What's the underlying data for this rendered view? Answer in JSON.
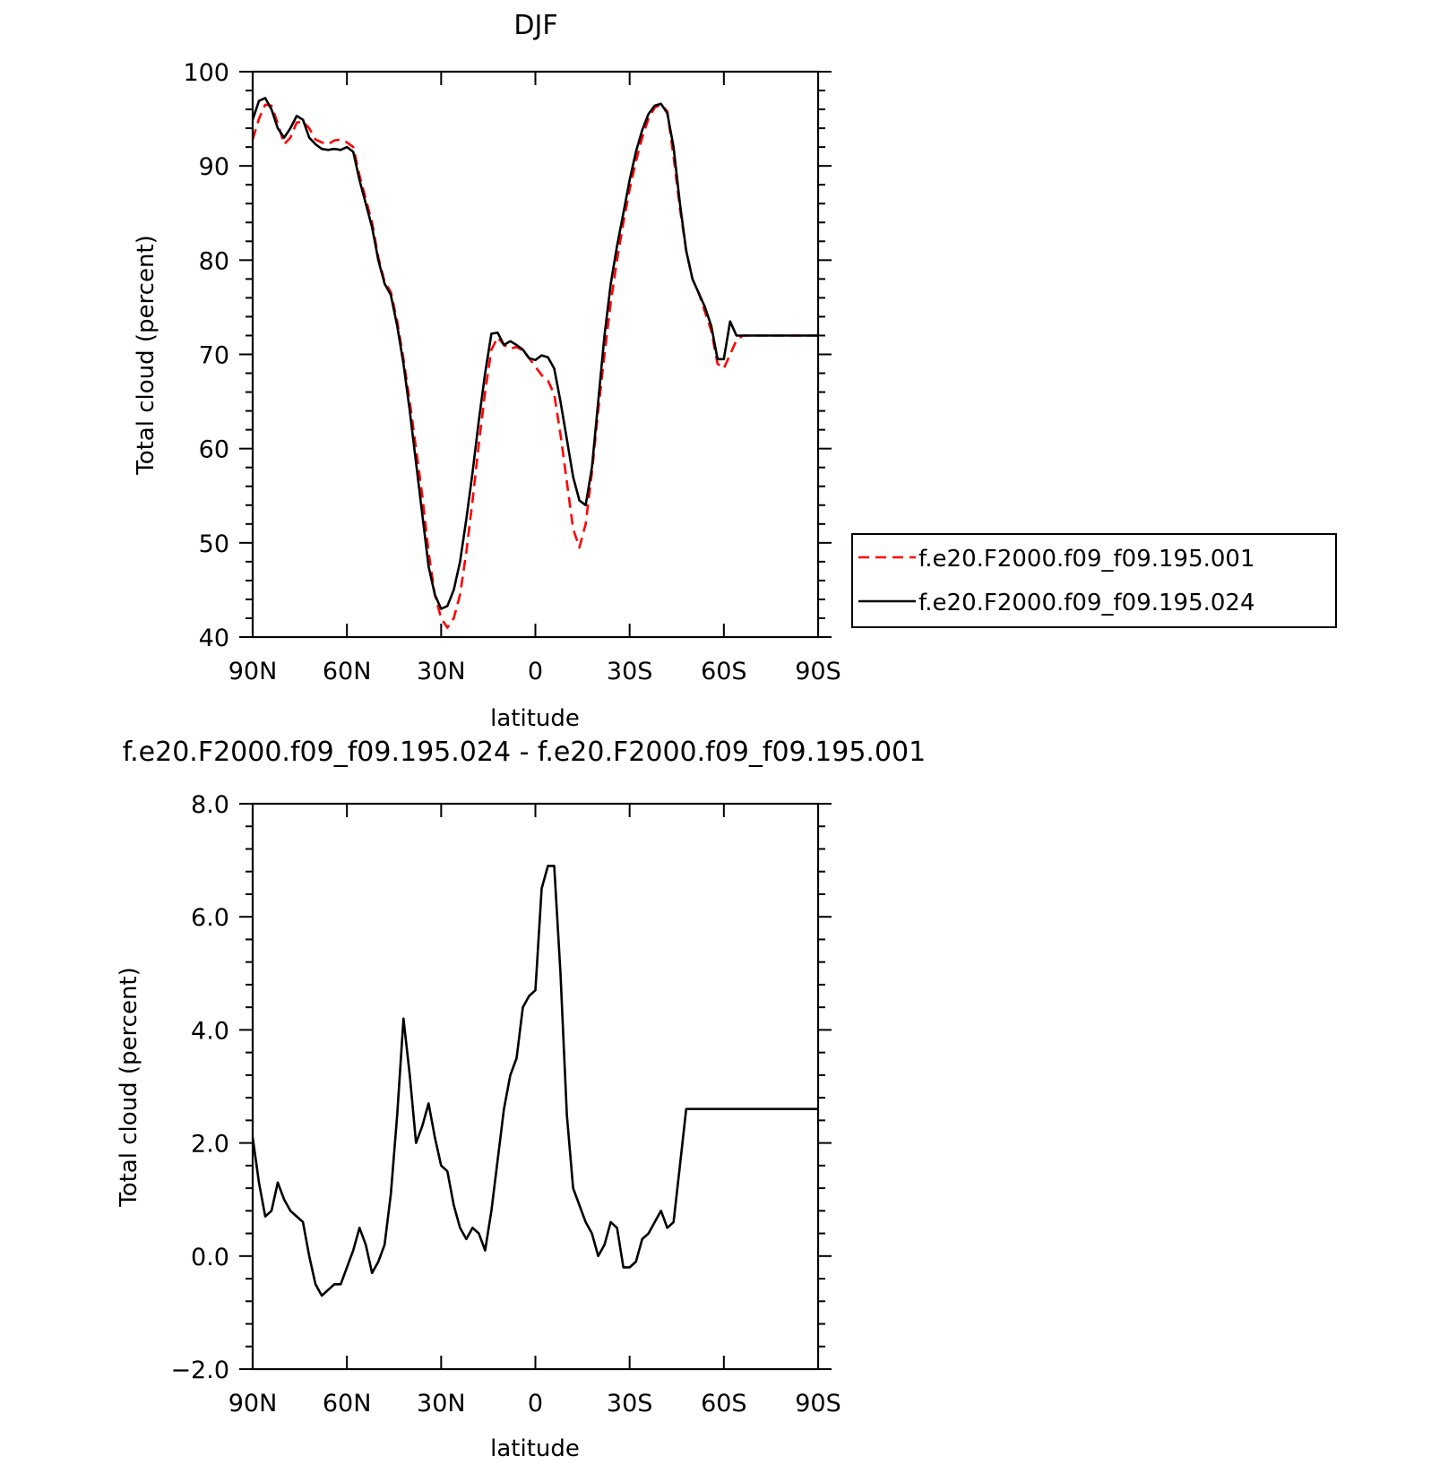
{
  "chart_data": [
    {
      "type": "line",
      "title": "DJF",
      "xlabel": "latitude",
      "ylabel": "Total cloud (percent)",
      "xlim": [
        90,
        -90
      ],
      "ylim": [
        40,
        100
      ],
      "x_ticks": [
        90,
        60,
        30,
        0,
        -30,
        -60,
        -90
      ],
      "x_tick_labels": [
        "90N",
        "60N",
        "30N",
        "0",
        "30S",
        "60S",
        "90S"
      ],
      "y_ticks": [
        40,
        50,
        60,
        70,
        80,
        90,
        100
      ],
      "y_tick_labels": [
        "40",
        "50",
        "60",
        "70",
        "80",
        "90",
        "100"
      ],
      "legend_position": "right",
      "series": [
        {
          "name": "f.e20.F2000.f09_f09.195.001",
          "color": "#ff0000",
          "dash": "dashed",
          "x": [
            90,
            88,
            86,
            84,
            82,
            80,
            78,
            76,
            74,
            72,
            70,
            68,
            66,
            64,
            62,
            60,
            58,
            56,
            54,
            52,
            50,
            48,
            46,
            44,
            42,
            40,
            38,
            36,
            34,
            32,
            30,
            28,
            26,
            24,
            22,
            20,
            18,
            16,
            14,
            12,
            10,
            8,
            6,
            4,
            2,
            0,
            -2,
            -4,
            -6,
            -8,
            -10,
            -12,
            -14,
            -16,
            -18,
            -20,
            -22,
            -24,
            -26,
            -28,
            -30,
            -32,
            -34,
            -36,
            -38,
            -40,
            -42,
            -44,
            -46,
            -48,
            -50,
            -52,
            -54,
            -56,
            -58,
            -60,
            -62,
            -64,
            -66,
            -68,
            -70,
            -72,
            -74,
            -76,
            -78,
            -80,
            -82,
            -84,
            -86,
            -88,
            -90
          ],
          "y": [
            92.8,
            95.0,
            96.5,
            96.4,
            94.5,
            92.3,
            93.0,
            94.6,
            94.7,
            94.0,
            92.8,
            92.5,
            92.3,
            92.7,
            92.8,
            92.5,
            92.0,
            89.0,
            86.5,
            84.0,
            80.3,
            77.7,
            76.6,
            73.5,
            69.5,
            65.0,
            60.0,
            55.0,
            49.0,
            44.5,
            42.0,
            41.0,
            42.0,
            44.5,
            49.0,
            54.5,
            60.5,
            66.0,
            70.5,
            71.8,
            71.0,
            70.6,
            70.8,
            70.4,
            69.6,
            68.7,
            67.8,
            67.2,
            65.8,
            61.5,
            56.5,
            51.5,
            49.5,
            52.0,
            57.5,
            64.0,
            70.0,
            75.5,
            80.0,
            84.0,
            87.5,
            90.5,
            93.0,
            95.0,
            96.2,
            96.5,
            95.8,
            91.0,
            85.5,
            81.0,
            78.0,
            76.5,
            74.5,
            72.5,
            69.0,
            68.5,
            70.0,
            71.5,
            72.0,
            72.0,
            72.0,
            72.0,
            72.0,
            72.0,
            72.0,
            72.0,
            72.0,
            72.0,
            72.0,
            72.0,
            72.0
          ]
        },
        {
          "name": "f.e20.F2000.f09_f09.195.024",
          "color": "#000000",
          "dash": "solid",
          "x": [
            90,
            88,
            86,
            84,
            82,
            80,
            78,
            76,
            74,
            72,
            70,
            68,
            66,
            64,
            62,
            60,
            58,
            56,
            54,
            52,
            50,
            48,
            46,
            44,
            42,
            40,
            38,
            36,
            34,
            32,
            30,
            28,
            26,
            24,
            22,
            20,
            18,
            16,
            14,
            12,
            10,
            8,
            6,
            4,
            2,
            0,
            -2,
            -4,
            -6,
            -8,
            -10,
            -12,
            -14,
            -16,
            -18,
            -20,
            -22,
            -24,
            -26,
            -28,
            -30,
            -32,
            -34,
            -36,
            -38,
            -40,
            -42,
            -44,
            -46,
            -48,
            -50,
            -52,
            -54,
            -56,
            -58,
            -60,
            -62,
            -64,
            -66,
            -68,
            -70,
            -72,
            -74,
            -76,
            -78,
            -80,
            -82,
            -84,
            -86,
            -88,
            -90
          ],
          "y": [
            94.9,
            96.9,
            97.2,
            96.0,
            94.0,
            93.0,
            94.0,
            95.3,
            94.9,
            93.0,
            92.3,
            91.8,
            91.7,
            91.8,
            91.7,
            92.0,
            91.5,
            88.5,
            86.0,
            83.5,
            80.0,
            77.5,
            76.3,
            73.0,
            69.0,
            64.0,
            58.5,
            53.0,
            47.5,
            44.5,
            43.0,
            43.3,
            45.0,
            48.0,
            52.5,
            57.5,
            63.0,
            68.0,
            72.2,
            72.3,
            71.0,
            71.4,
            71.0,
            70.5,
            69.6,
            69.4,
            69.9,
            69.7,
            68.5,
            65.0,
            61.0,
            57.0,
            54.5,
            54.0,
            58.0,
            65.0,
            72.0,
            77.5,
            81.5,
            85.0,
            88.5,
            91.5,
            93.8,
            95.5,
            96.4,
            96.6,
            95.6,
            92.0,
            86.0,
            81.0,
            78.0,
            76.5,
            75.0,
            73.0,
            69.5,
            69.5,
            73.5,
            72.0,
            72.0,
            72.0,
            72.0,
            72.0,
            72.0,
            72.0,
            72.0,
            72.0,
            72.0,
            72.0,
            72.0,
            72.0,
            72.0
          ]
        }
      ]
    },
    {
      "type": "line",
      "title": "f.e20.F2000.f09_f09.195.024 - f.e20.F2000.f09_f09.195.001",
      "xlabel": "latitude",
      "ylabel": "Total cloud (percent)",
      "xlim": [
        90,
        -90
      ],
      "ylim": [
        -2.0,
        8.0
      ],
      "x_ticks": [
        90,
        60,
        30,
        0,
        -30,
        -60,
        -90
      ],
      "x_tick_labels": [
        "90N",
        "60N",
        "30N",
        "0",
        "30S",
        "60S",
        "90S"
      ],
      "y_ticks": [
        -2.0,
        0.0,
        2.0,
        4.0,
        6.0,
        8.0
      ],
      "y_tick_labels": [
        "−2.0",
        "0.0",
        "2.0",
        "4.0",
        "6.0",
        "8.0"
      ],
      "series": [
        {
          "color": "#000000",
          "dash": "solid",
          "x": [
            90,
            88,
            86,
            84,
            82,
            80,
            78,
            76,
            74,
            72,
            70,
            68,
            66,
            64,
            62,
            60,
            58,
            56,
            54,
            52,
            50,
            48,
            46,
            44,
            42,
            40,
            38,
            36,
            34,
            32,
            30,
            28,
            26,
            24,
            22,
            20,
            18,
            16,
            14,
            12,
            10,
            8,
            6,
            4,
            2,
            0,
            -2,
            -4,
            -6,
            -8,
            -10,
            -12,
            -14,
            -16,
            -18,
            -20,
            -22,
            -24,
            -26,
            -28,
            -30,
            -32,
            -34,
            -36,
            -38,
            -40,
            -42,
            -44,
            -46,
            -48,
            -50,
            -52,
            -54,
            -56,
            -58,
            -60,
            -62,
            -64,
            -66,
            -68,
            -70,
            -72,
            -74,
            -76,
            -78,
            -80,
            -82,
            -84,
            -86,
            -88,
            -90
          ],
          "y": [
            2.1,
            1.3,
            0.7,
            0.8,
            1.3,
            1.0,
            0.8,
            0.7,
            0.6,
            0.0,
            -0.5,
            -0.7,
            -0.6,
            -0.5,
            -0.5,
            -0.2,
            0.1,
            0.5,
            0.2,
            -0.3,
            -0.1,
            0.2,
            1.1,
            2.5,
            4.2,
            3.2,
            2.0,
            2.3,
            2.7,
            2.1,
            1.6,
            1.5,
            0.9,
            0.5,
            0.3,
            0.5,
            0.4,
            0.1,
            0.8,
            1.7,
            2.6,
            3.2,
            3.5,
            4.4,
            4.6,
            4.7,
            6.5,
            6.9,
            6.9,
            5.0,
            2.5,
            1.2,
            0.9,
            0.6,
            0.4,
            0.0,
            0.2,
            0.6,
            0.5,
            -0.2,
            -0.2,
            -0.1,
            0.3,
            0.4,
            0.6,
            0.8,
            0.5,
            0.6,
            1.6,
            2.6,
            2.6,
            2.6,
            2.6,
            2.6,
            2.6,
            2.6,
            2.6,
            2.6,
            2.6,
            2.6,
            2.6,
            2.6,
            2.6,
            2.6,
            2.6,
            2.6,
            2.6,
            2.6,
            2.6,
            2.6,
            2.6
          ]
        }
      ]
    }
  ]
}
